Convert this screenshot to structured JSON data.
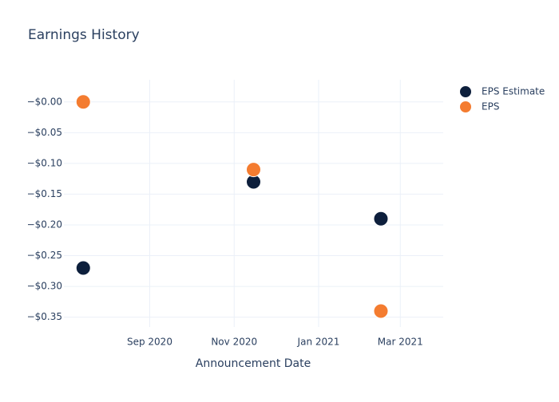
{
  "chart_data": {
    "type": "scatter",
    "title": "Earnings History",
    "x_label": "Announcement Date",
    "x": [
      "2020-07",
      "2020-11",
      "2021-02"
    ],
    "series": [
      {
        "name": "EPS Estimate",
        "color": "#0d1f3c",
        "values": [
          -0.27,
          -0.13,
          -0.19
        ]
      },
      {
        "name": "EPS",
        "color": "#f47c30",
        "values": [
          0,
          -0.11,
          -0.34
        ]
      }
    ],
    "xlim": [
      "2020-07",
      "2021-04"
    ],
    "xticks": [
      {
        "value": "2020-09",
        "label": "Sep 2020"
      },
      {
        "value": "2020-11",
        "label": "Nov 2020"
      },
      {
        "value": "2021-01",
        "label": "Jan 2021"
      },
      {
        "value": "2021-03",
        "label": "Mar 2021"
      }
    ],
    "ylim": [
      -0.366,
      0.036
    ],
    "yticks": [
      {
        "value": 0,
        "label": "−$0.00"
      },
      {
        "value": -0.05,
        "label": "−$0.05"
      },
      {
        "value": -0.1,
        "label": "−$0.10"
      },
      {
        "value": -0.15,
        "label": "−$0.15"
      },
      {
        "value": -0.2,
        "label": "−$0.20"
      },
      {
        "value": -0.25,
        "label": "−$0.25"
      },
      {
        "value": -0.3,
        "label": "−$0.30"
      },
      {
        "value": -0.35,
        "label": "−$0.35"
      }
    ],
    "grid": true,
    "legend": "right"
  }
}
